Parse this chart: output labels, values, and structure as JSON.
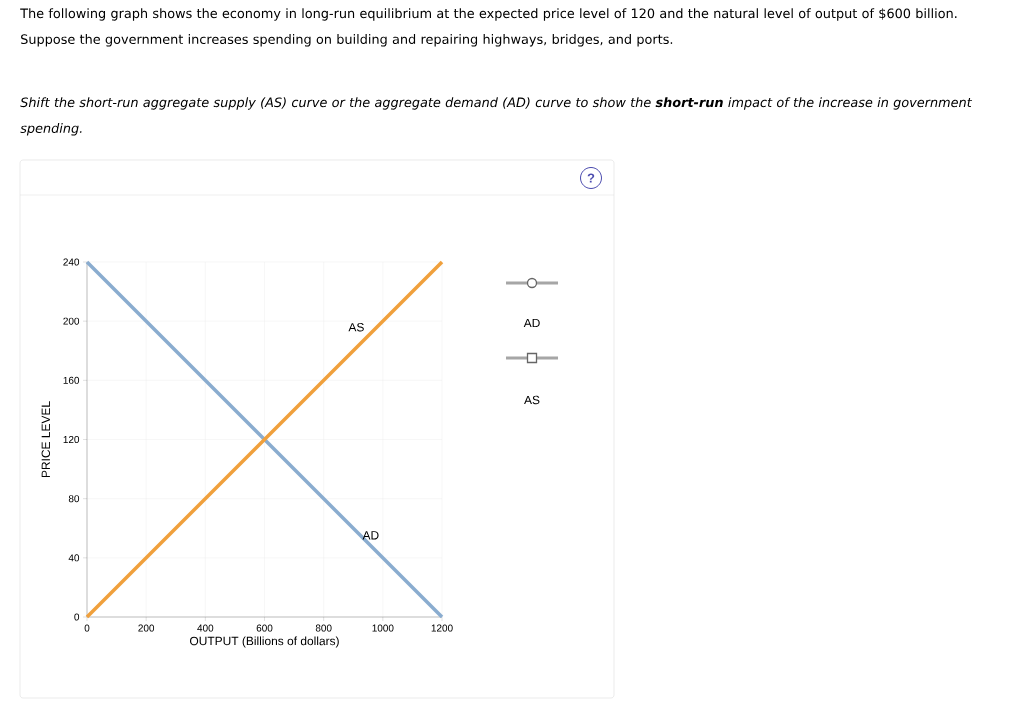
{
  "chart_data": {
    "type": "line",
    "title": "The following graph shows the economy in long-run equilibrium at the expected price level of 120 and the natural level of output of $600 billion.",
    "subtitle": "Suppose the government increases spending on building and repairing highways, bridges, and ports.",
    "annotations": [
      "Shift the short-run aggregate supply (AS) curve or the aggregate demand (AD) curve to show the **short-run** impact of the increase in government spending.",
      "AD",
      "AS",
      "?"
    ],
    "x": [
      0,
      1200
    ],
    "xlabel": "OUTPUT (Billions of dollars)",
    "ylabel": "PRICE LEVEL",
    "series": [
      {
        "name": "AD",
        "color": "#8aaccf",
        "values": [
          240,
          0
        ]
      },
      {
        "name": "AS",
        "color": "#f0a03c",
        "values": [
          0,
          240
        ]
      }
    ],
    "xlim": [
      0,
      1200
    ],
    "ylim": [
      0,
      240
    ],
    "xticks": [
      0,
      200,
      400,
      600,
      800,
      1000,
      1200
    ],
    "yticks": [
      0,
      40,
      80,
      120,
      160,
      200,
      240
    ],
    "grid": true,
    "marker": "none",
    "line_style": "solid"
  }
}
